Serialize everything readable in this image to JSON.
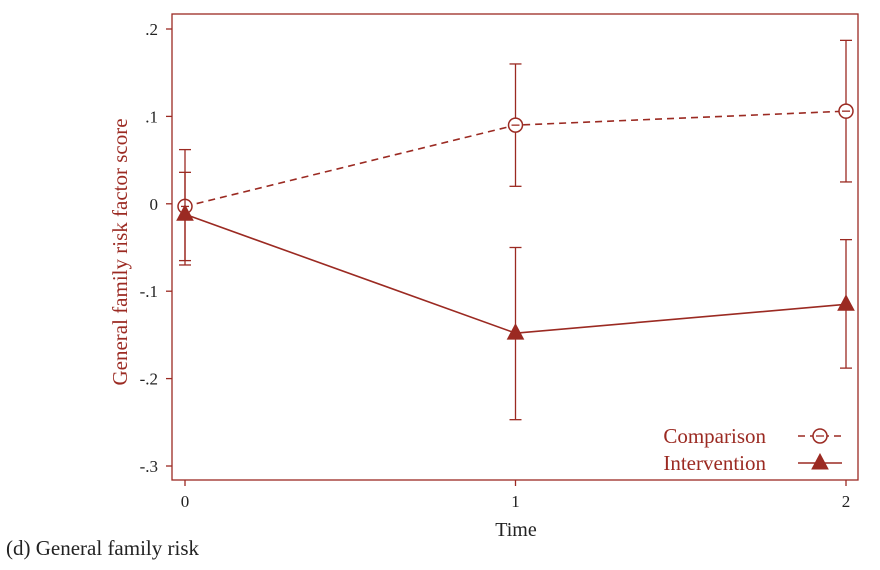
{
  "caption": "(d) General family risk",
  "chart_data": {
    "type": "line",
    "xlabel": "Time",
    "ylabel": "General family risk factor score",
    "xlim": [
      0,
      2
    ],
    "ylim": [
      -0.3,
      0.2
    ],
    "x_ticks": [
      0,
      1,
      2
    ],
    "x_tick_labels": [
      "0",
      "1",
      "2"
    ],
    "y_ticks": [
      -0.3,
      -0.2,
      -0.1,
      0,
      0.1,
      0.2
    ],
    "y_tick_labels": [
      "-.3",
      "-.2",
      "-.1",
      "0",
      ".1",
      ".2"
    ],
    "grid": false,
    "legend_position": "bottom-right",
    "series": [
      {
        "name": "Comparison",
        "x": [
          0,
          1,
          2
        ],
        "values": [
          -0.003,
          0.09,
          0.106
        ],
        "ci_low": [
          -0.065,
          0.02,
          0.025
        ],
        "ci_high": [
          0.062,
          0.16,
          0.187
        ],
        "line_style": "dashed",
        "marker": "hollow-circle",
        "color": "#9b2a22"
      },
      {
        "name": "Intervention",
        "x": [
          0,
          1,
          2
        ],
        "values": [
          -0.012,
          -0.148,
          -0.115
        ],
        "ci_low": [
          -0.07,
          -0.247,
          -0.188
        ],
        "ci_high": [
          0.036,
          -0.05,
          -0.041
        ],
        "line_style": "solid",
        "marker": "filled-triangle",
        "color": "#9b2a22"
      }
    ]
  }
}
